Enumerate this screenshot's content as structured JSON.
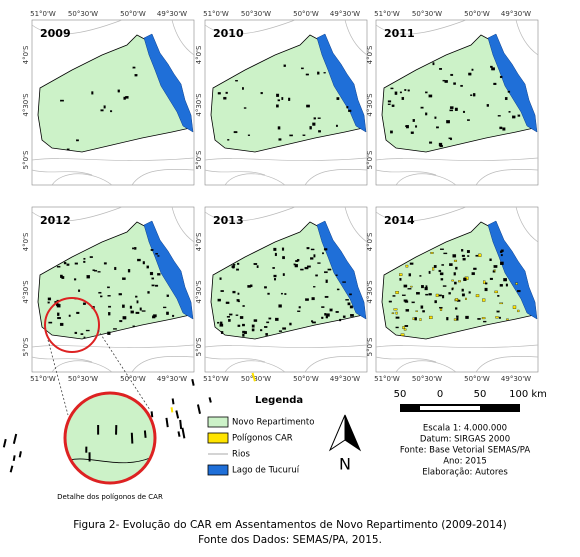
{
  "panels": [
    {
      "year": "2009"
    },
    {
      "year": "2010"
    },
    {
      "year": "2011"
    },
    {
      "year": "2012"
    },
    {
      "year": "2013"
    },
    {
      "year": "2014"
    }
  ],
  "longitudes": [
    "51°0'W",
    "50°30'W",
    "50°0'W",
    "49°30'W"
  ],
  "latitudes": [
    "4°0'S",
    "4°30'S",
    "5°0'S"
  ],
  "legend": {
    "title": "Legenda",
    "items": [
      "Novo Repartimento",
      "Polígonos CAR",
      "Rios",
      "Lago de Tucuruí"
    ]
  },
  "north": "N",
  "scale": {
    "labels": [
      "50",
      "0",
      "50",
      "100 km"
    ]
  },
  "info": [
    "Escala 1: 4.000.000",
    "Datum: SIRGAS 2000",
    "Fonte: Base Vetorial SEMAS/PA",
    "Ano: 2015",
    "Elaboração: Autores"
  ],
  "detail_label": "Detalhe dos polígonos de CAR",
  "caption": [
    "Figura 2- Evolução do CAR em Assentamentos de Novo Repartimento (2009-2014)",
    "Fonte dos Dados: SEMAS/PA, 2015."
  ]
}
